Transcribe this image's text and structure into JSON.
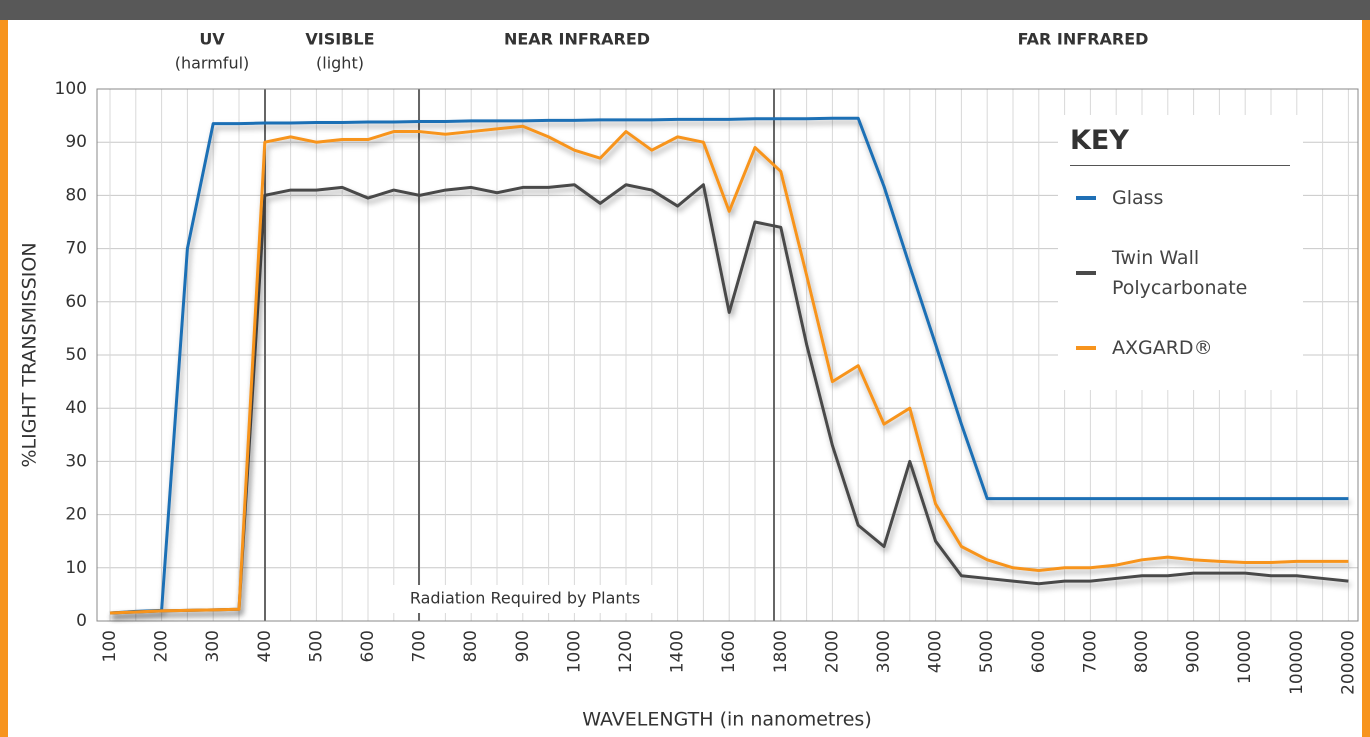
{
  "chart_data": {
    "type": "line",
    "categories": [
      "100",
      null,
      "200",
      null,
      "300",
      null,
      "400",
      null,
      "500",
      null,
      "600",
      null,
      "700",
      null,
      "800",
      null,
      "900",
      null,
      "1000",
      null,
      "1200",
      null,
      "1400",
      null,
      "1600",
      null,
      "1800",
      null,
      "2000",
      null,
      "3000",
      null,
      "4000",
      null,
      "5000",
      null,
      "6000",
      null,
      "7000",
      null,
      "8000",
      null,
      "9000",
      null,
      "10000",
      null,
      "100000",
      null,
      "200000"
    ],
    "series": [
      {
        "name": "Glass",
        "color": "#1f6fb5",
        "values": [
          1.5,
          1.8,
          2,
          70,
          93.5,
          93.5,
          93.6,
          93.6,
          93.7,
          93.7,
          93.8,
          93.8,
          93.9,
          93.9,
          94,
          94,
          94,
          94.1,
          94.1,
          94.2,
          94.2,
          94.2,
          94.3,
          94.3,
          94.3,
          94.4,
          94.4,
          94.4,
          94.5,
          94.5,
          81.7,
          66.7,
          52,
          37,
          23,
          23,
          23,
          23,
          23,
          23,
          23,
          23,
          23,
          23,
          23,
          23,
          23,
          23,
          23
        ]
      },
      {
        "name": "Twin Wall Polycarbonate",
        "color": "#4a4a4a",
        "values": [
          1.5,
          1.7,
          1.9,
          2,
          2.1,
          2.2,
          80,
          81,
          81,
          81.5,
          79.5,
          81,
          80,
          81,
          81.5,
          80.5,
          81.5,
          81.5,
          82,
          78.5,
          82,
          81,
          78,
          82,
          58,
          75,
          74,
          52,
          33,
          18,
          14,
          30,
          15,
          8.5,
          8,
          7.5,
          7,
          7.5,
          7.5,
          8,
          8.5,
          8.5,
          9,
          9,
          9,
          8.5,
          8.5,
          8,
          7.5
        ]
      },
      {
        "name": "AXGARD®",
        "color": "#f7941d",
        "values": [
          1.5,
          1.7,
          1.9,
          2,
          2.1,
          2.2,
          90,
          91,
          90,
          90.5,
          90.5,
          92,
          92,
          91.5,
          92,
          92.5,
          93,
          91,
          88.5,
          87,
          92,
          88.5,
          91,
          90,
          77,
          89,
          84.5,
          65,
          45,
          48,
          37,
          40,
          22,
          14,
          11.5,
          10,
          9.5,
          10,
          10,
          10.5,
          11.5,
          12,
          11.5,
          11.2,
          11,
          11,
          11.2,
          11.2,
          11.2
        ]
      }
    ],
    "ylim": [
      0,
      100
    ],
    "yticks": [
      0,
      10,
      20,
      30,
      40,
      50,
      60,
      70,
      80,
      90,
      100
    ],
    "grid": true,
    "ylabel": "%LIGHT TRANSMISSION",
    "xlabel": "WAVELENGTH (in nanometres)",
    "legend_title": "KEY",
    "annotations": [
      "UV",
      "(harmful)",
      "VISIBLE",
      "(light)",
      "NEAR INFRARED",
      "FAR INFRARED",
      "Radiation Required by Plants"
    ]
  }
}
